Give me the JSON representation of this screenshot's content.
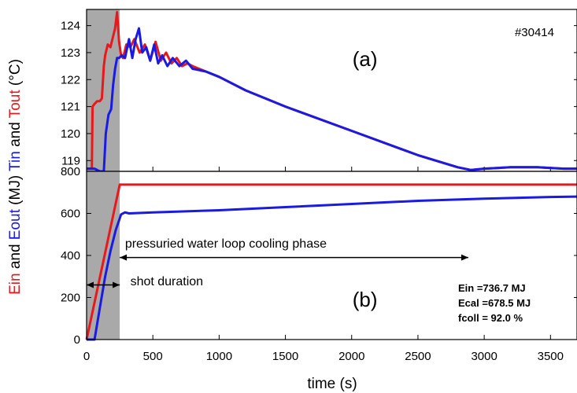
{
  "figure": {
    "shot_id": "#30414",
    "x_axis_title": "time (s)",
    "y_axis_title_parts": [
      {
        "text": "Ein",
        "color": "#e8191c"
      },
      {
        "text": " and ",
        "color": "#000000"
      },
      {
        "text": "Eout",
        "color": "#1a1ae6"
      },
      {
        "text": " (MJ) ",
        "color": "#000000"
      },
      {
        "text": "Tin",
        "color": "#1a1ae6"
      },
      {
        "text": " and ",
        "color": "#000000"
      },
      {
        "text": "Tout",
        "color": "#e8191c"
      },
      {
        "text": " (°C)",
        "color": "#000000"
      }
    ]
  },
  "chart_data": [
    {
      "type": "line",
      "panel_label": "(a)",
      "xlim": [
        0,
        3700
      ],
      "ylim": [
        118.6,
        124.6
      ],
      "grid": false,
      "shaded_interval": {
        "x": [
          0,
          250
        ],
        "color": "#a9a9a9"
      },
      "x_ticks": [
        0,
        500,
        1000,
        1500,
        2000,
        2500,
        3000,
        3500
      ],
      "y_ticks": [
        "119",
        "120",
        "121",
        "122",
        "123",
        "124"
      ],
      "series": [
        {
          "name": "Tout",
          "color": "#e8191c",
          "x": [
            0,
            40,
            45,
            60,
            80,
            100,
            115,
            130,
            140,
            160,
            180,
            195,
            215,
            230,
            245,
            260,
            275,
            300,
            330,
            360,
            400,
            440,
            480,
            520,
            560,
            600,
            640,
            680,
            720,
            760,
            800,
            900,
            1000,
            1200,
            1500,
            2000,
            2500,
            2800,
            2900,
            3000,
            3200,
            3400,
            3600,
            3700
          ],
          "y": [
            118.7,
            118.7,
            121.0,
            121.1,
            121.2,
            121.2,
            121.3,
            122.5,
            122.9,
            123.3,
            123.2,
            123.5,
            123.9,
            124.5,
            123.4,
            122.9,
            122.8,
            123.3,
            123.2,
            123.5,
            123.0,
            123.3,
            122.7,
            123.4,
            122.7,
            123.0,
            122.6,
            122.8,
            122.5,
            122.6,
            122.5,
            122.3,
            122.1,
            121.6,
            121.0,
            120.1,
            119.2,
            118.75,
            118.65,
            118.7,
            118.75,
            118.75,
            118.7,
            118.7
          ]
        },
        {
          "name": "Tin",
          "color": "#1a1ae6",
          "x": [
            0,
            60,
            100,
            130,
            145,
            165,
            185,
            200,
            215,
            230,
            245,
            265,
            290,
            320,
            345,
            370,
            395,
            420,
            450,
            480,
            510,
            540,
            570,
            610,
            650,
            700,
            750,
            800,
            900,
            1000,
            1200,
            1500,
            2000,
            2500,
            2800,
            2900,
            3000,
            3200,
            3400,
            3600,
            3700
          ],
          "y": [
            118.7,
            118.7,
            118.6,
            118.6,
            120.0,
            120.7,
            120.9,
            121.8,
            122.4,
            122.8,
            122.8,
            122.9,
            122.8,
            123.5,
            122.8,
            123.5,
            123.9,
            123.0,
            123.2,
            122.7,
            123.3,
            122.6,
            122.9,
            122.5,
            122.8,
            122.5,
            122.7,
            122.4,
            122.3,
            122.1,
            121.6,
            121.0,
            120.1,
            119.2,
            118.75,
            118.65,
            118.7,
            118.75,
            118.75,
            118.7,
            118.7
          ]
        }
      ]
    },
    {
      "type": "line",
      "panel_label": "(b)",
      "xlim": [
        0,
        3700
      ],
      "ylim": [
        0,
        800
      ],
      "grid": false,
      "shaded_interval": {
        "x": [
          0,
          250
        ],
        "color": "#a9a9a9"
      },
      "x_ticks": [
        "0",
        "500",
        "1000",
        "1500",
        "2000",
        "2500",
        "3000",
        "3500"
      ],
      "y_ticks": [
        "0",
        "200",
        "400",
        "600",
        "800"
      ],
      "annotations": [
        {
          "text": "pressuried water loop cooling phase",
          "arrow": [
            250,
            2880
          ],
          "arrow_y": 390,
          "text_x": 290,
          "text_y": 460
        },
        {
          "text": "shot duration",
          "arrow": [
            0,
            250
          ],
          "arrow_y": 260,
          "text_x": 330,
          "text_y": 280
        }
      ],
      "energy_summary": [
        "Ein =736.7 MJ",
        "Ecal =678.5 MJ",
        "fcoll  = 92.0  %"
      ],
      "series": [
        {
          "name": "Ein",
          "color": "#e8191c",
          "x": [
            0,
            250,
            3700
          ],
          "y": [
            0,
            737,
            737
          ]
        },
        {
          "name": "Eout",
          "color": "#1a1ae6",
          "x": [
            0,
            40,
            60,
            100,
            140,
            180,
            220,
            260,
            290,
            320,
            500,
            1000,
            1500,
            2000,
            2500,
            3000,
            3500,
            3700
          ],
          "y": [
            0,
            0,
            0,
            150,
            300,
            420,
            520,
            595,
            605,
            600,
            605,
            615,
            630,
            645,
            660,
            670,
            678,
            680
          ]
        }
      ]
    }
  ]
}
